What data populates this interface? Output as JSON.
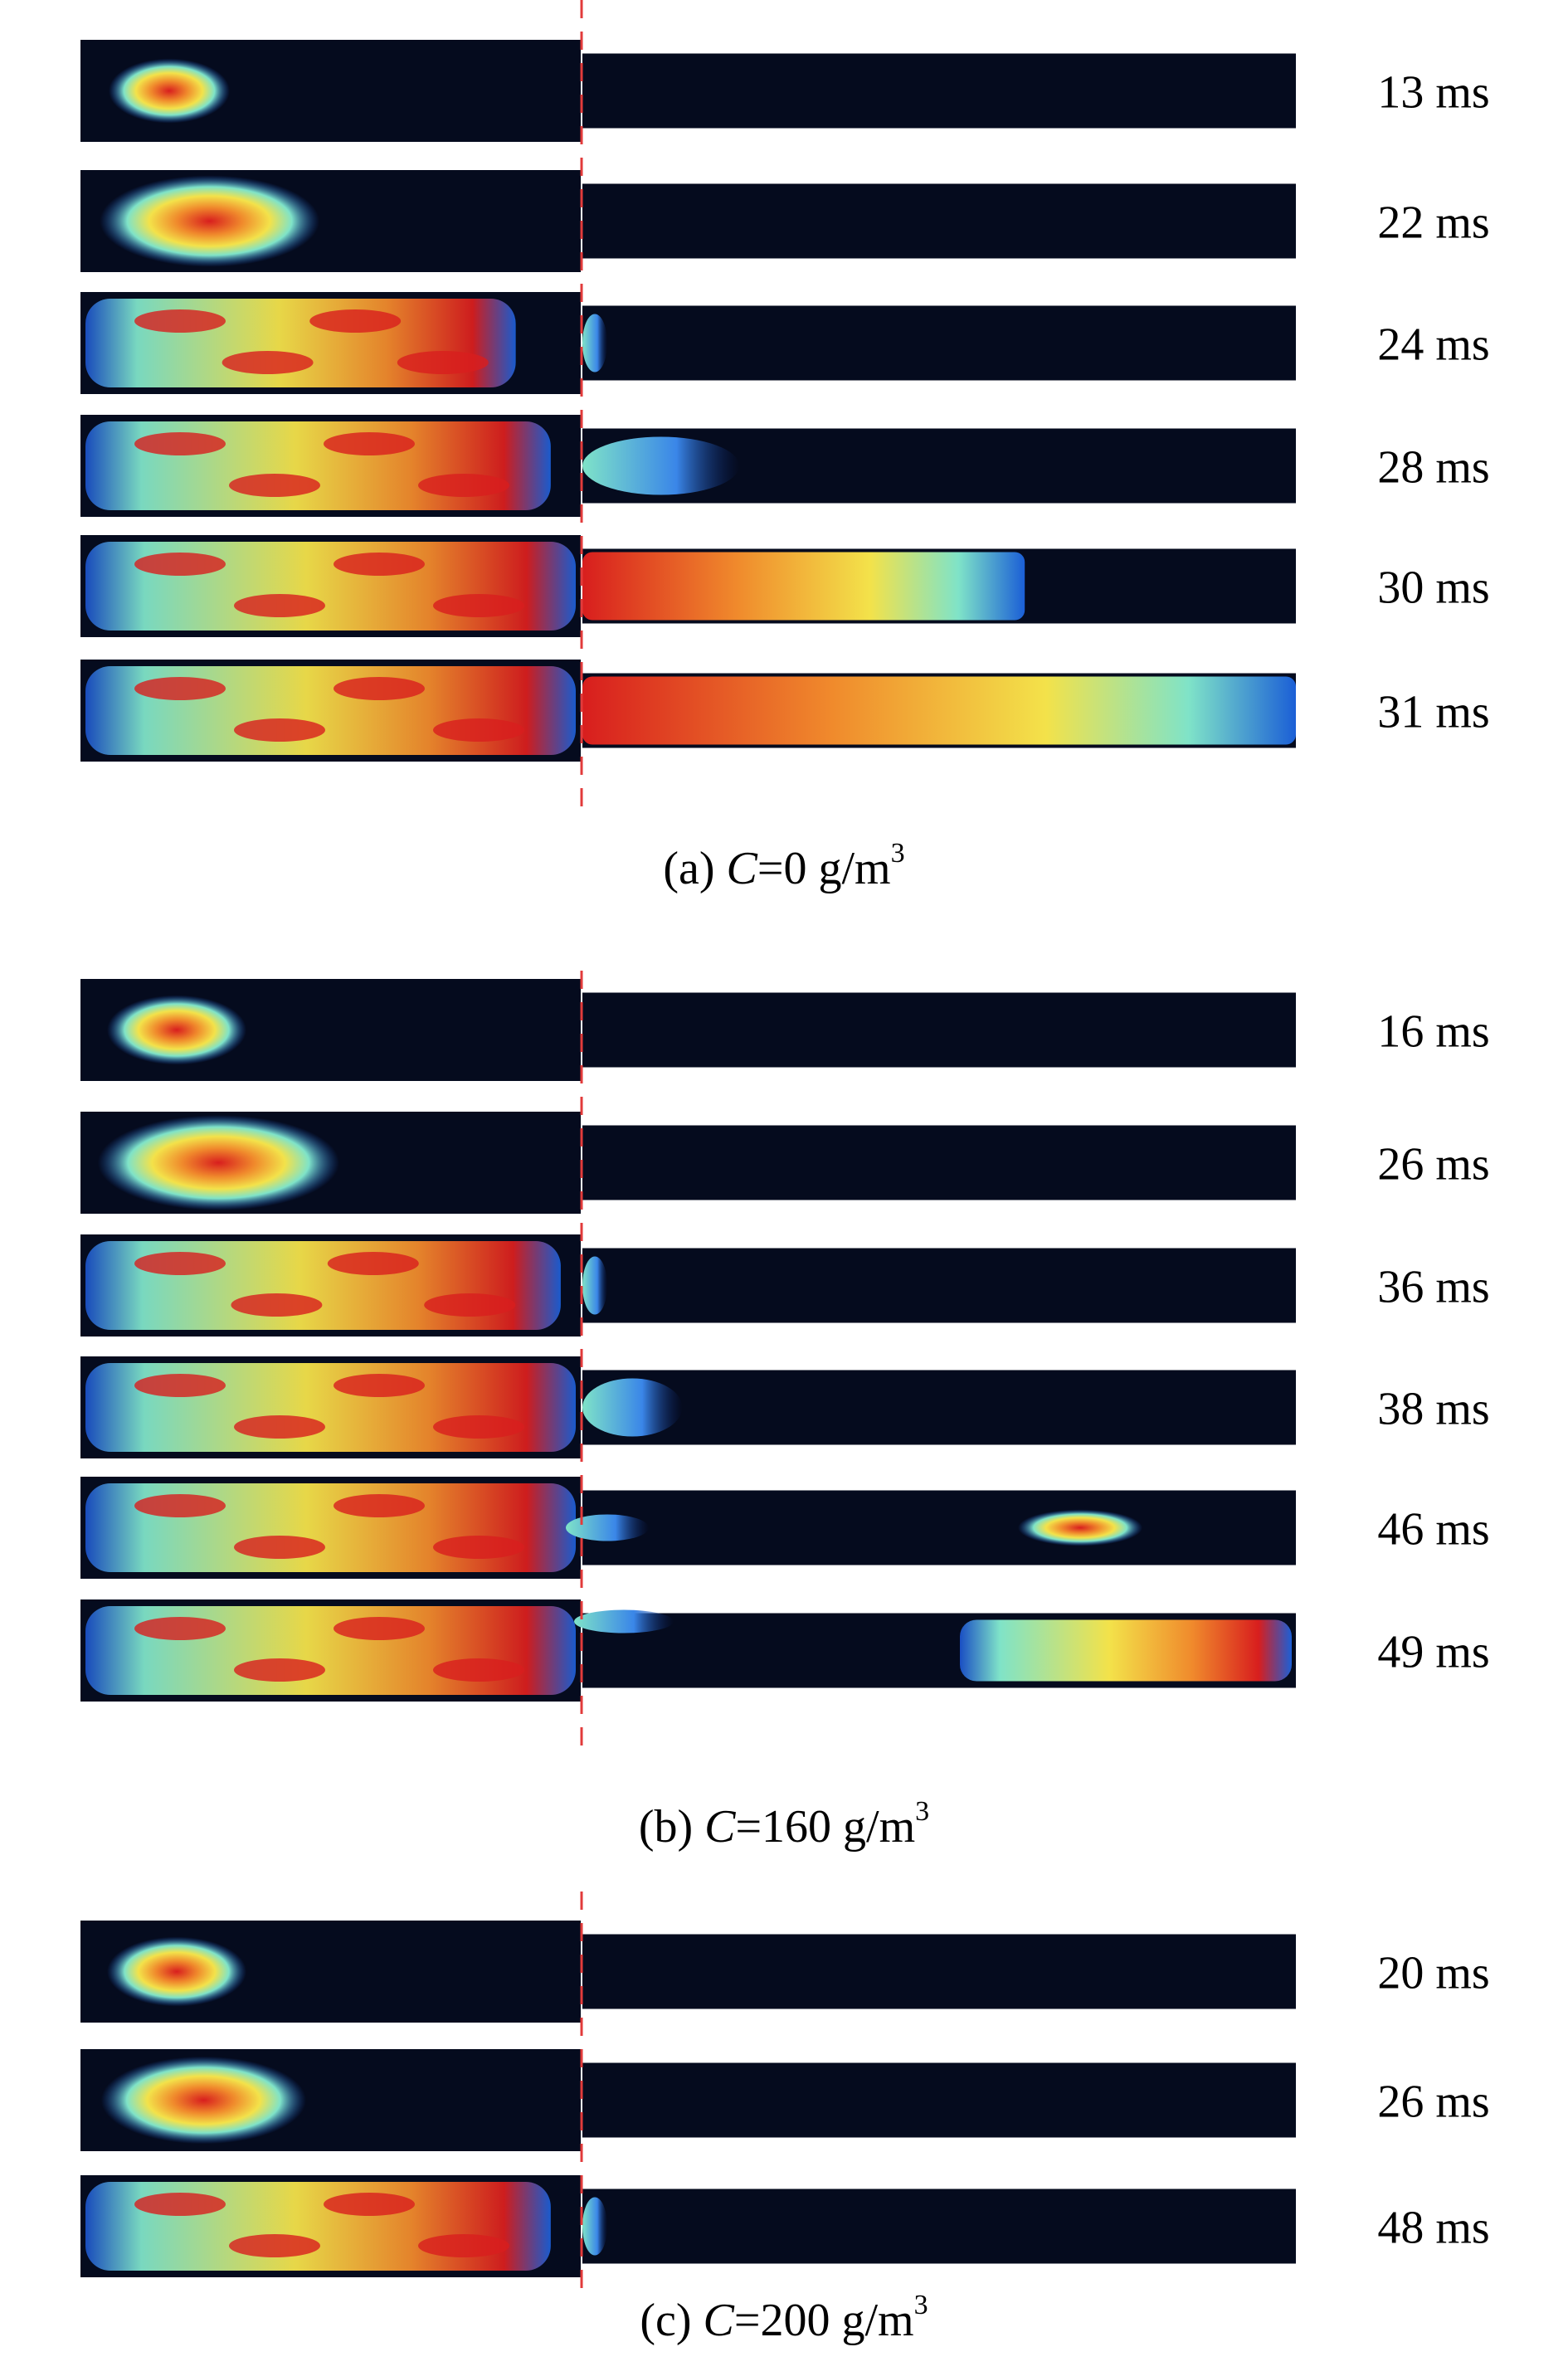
{
  "panels": [
    {
      "id": "a",
      "caption": {
        "prefix": "(a) ",
        "var": "C",
        "value": "=0 g/m",
        "sup": "3"
      },
      "frames": [
        {
          "time": "13 ms",
          "right_progress": 0.0
        },
        {
          "time": "22 ms",
          "right_progress": 0.0
        },
        {
          "time": "24 ms",
          "right_progress": 0.03
        },
        {
          "time": "28 ms",
          "right_progress": 0.22
        },
        {
          "time": "30 ms",
          "right_progress": 0.62
        },
        {
          "time": "31 ms",
          "right_progress": 1.0
        }
      ]
    },
    {
      "id": "b",
      "caption": {
        "prefix": "(b) ",
        "var": "C",
        "value": "=160 g/m",
        "sup": "3"
      },
      "frames": [
        {
          "time": "16 ms",
          "right_progress": 0.0
        },
        {
          "time": "26 ms",
          "right_progress": 0.0
        },
        {
          "time": "36 ms",
          "right_progress": 0.02
        },
        {
          "time": "38 ms",
          "right_progress": 0.14
        },
        {
          "time": "46 ms",
          "right_progress": 0.1
        },
        {
          "time": "49 ms",
          "right_progress": 0.12
        }
      ]
    },
    {
      "id": "c",
      "caption": {
        "prefix": "(c) ",
        "var": "C",
        "value": "=200 g/m",
        "sup": "3"
      },
      "frames": [
        {
          "time": "20 ms",
          "right_progress": 0.0
        },
        {
          "time": "26 ms",
          "right_progress": 0.0
        },
        {
          "time": "48 ms",
          "right_progress": 0.02
        }
      ]
    }
  ],
  "colors": {
    "background": "#ffffff",
    "channel": "#050b1e",
    "divider": "#e23b3b",
    "flame_low": "#1b5fd6",
    "flame_mid": "#7fe3c8",
    "flame_high": "#f08a2c",
    "flame_hot": "#d81e1e"
  }
}
